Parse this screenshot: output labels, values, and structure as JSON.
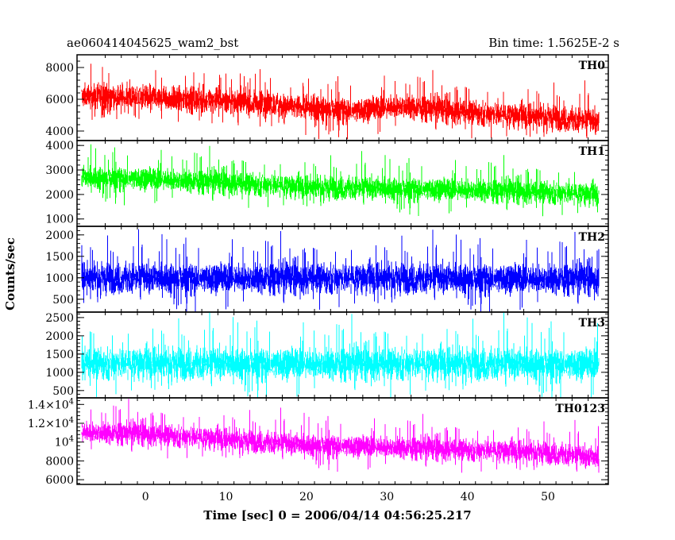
{
  "header": {
    "title": "ae060414045625_wam2_bst",
    "bin_time": "Bin time: 1.5625E-2 s"
  },
  "axes": {
    "xlabel": "Time [sec] 0 = 2006/04/14 04:56:25.217",
    "ylabel": "Counts/sec"
  },
  "chart_data": {
    "type": "line",
    "title": "ae060414045625_wam2_bst",
    "xlabel": "Time [sec] 0 = 2006/04/14 04:56:25.217",
    "ylabel": "Counts/sec",
    "xlim": [
      -8.5,
      57.5
    ],
    "x_ticks": [
      0,
      10,
      20,
      30,
      40,
      50
    ],
    "x_tick_labels": [
      "0",
      "10",
      "20",
      "30",
      "40",
      "50"
    ],
    "data_x_range": [
      -7.9,
      56.3
    ],
    "sample_step": 0.015625,
    "grid": false,
    "panels": [
      {
        "name": "TH0",
        "color": "#ff0000",
        "ylim": [
          3400,
          8800
        ],
        "y_ticks": [
          4000,
          6000,
          8000
        ],
        "y_tick_labels": [
          "4000",
          "6000",
          "8000"
        ],
        "mean_trend": {
          "x": [
            -7.9,
            0,
            10,
            20,
            26,
            32,
            38,
            45,
            50,
            56.3
          ],
          "y": [
            6200,
            6100,
            5900,
            5500,
            5300,
            5600,
            5300,
            5000,
            4900,
            4600
          ]
        },
        "spread": 1000
      },
      {
        "name": "TH1",
        "color": "#00ff00",
        "ylim": [
          700,
          4200
        ],
        "y_ticks": [
          1000,
          2000,
          3000,
          4000
        ],
        "y_tick_labels": [
          "1000",
          "2000",
          "3000",
          "4000"
        ],
        "mean_trend": {
          "x": [
            -7.9,
            0,
            10,
            20,
            30,
            40,
            50,
            56.3
          ],
          "y": [
            2700,
            2650,
            2500,
            2300,
            2250,
            2200,
            2100,
            2000
          ]
        },
        "spread": 600
      },
      {
        "name": "TH2",
        "color": "#0000ff",
        "ylim": [
          200,
          2200
        ],
        "y_ticks": [
          500,
          1000,
          1500,
          2000
        ],
        "y_tick_labels": [
          "500",
          "1000",
          "1500",
          "2000"
        ],
        "mean_trend": {
          "x": [
            -7.9,
            20,
            40,
            56.3
          ],
          "y": [
            1000,
            1000,
            990,
            980
          ]
        },
        "spread": 450
      },
      {
        "name": "TH3",
        "color": "#00ffff",
        "ylim": [
          300,
          2650
        ],
        "y_ticks": [
          500,
          1000,
          1500,
          2000,
          2500
        ],
        "y_tick_labels": [
          "500",
          "1000",
          "1500",
          "2000",
          "2500"
        ],
        "mean_trend": {
          "x": [
            -7.9,
            20,
            40,
            56.3
          ],
          "y": [
            1250,
            1250,
            1240,
            1230
          ]
        },
        "spread": 560
      },
      {
        "name": "TH0123",
        "color": "#ff00ff",
        "ylim": [
          5500,
          14700
        ],
        "y_ticks": [
          6000,
          8000,
          10000,
          12000,
          14000
        ],
        "y_tick_labels": [
          "6000",
          "8000",
          "10^4",
          "1.2×10^4",
          "1.4×10^4"
        ],
        "mean_trend": {
          "x": [
            -7.9,
            0,
            10,
            20,
            30,
            40,
            50,
            56.3
          ],
          "y": [
            11100,
            10900,
            10300,
            9700,
            9500,
            9200,
            8900,
            8300
          ]
        },
        "spread": 1500
      }
    ]
  }
}
